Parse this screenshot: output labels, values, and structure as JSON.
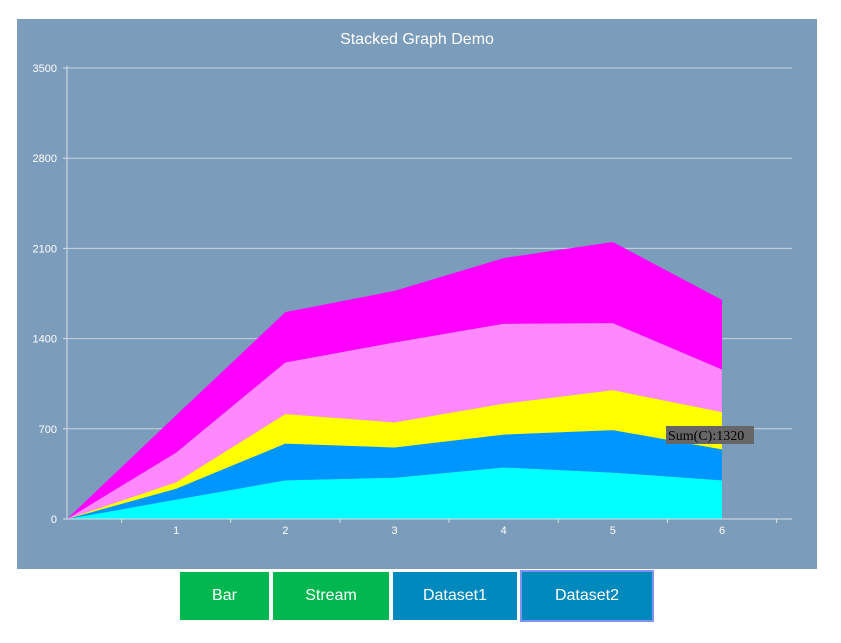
{
  "chart_data": {
    "type": "area",
    "stacked": true,
    "title": "Stacked Graph Demo",
    "xlabel": "",
    "ylabel": "",
    "x": [
      0,
      1,
      2,
      3,
      4,
      5,
      6
    ],
    "ylim": [
      0,
      3500
    ],
    "yticks": [
      0,
      700,
      1400,
      2100,
      2800,
      3500
    ],
    "xticks": [
      1,
      2,
      3,
      4,
      5,
      6
    ],
    "grid": true,
    "background": "#7b9cbb",
    "series": [
      {
        "color": "#00ffff",
        "values": [
          0,
          150,
          300,
          320,
          400,
          360,
          300
        ]
      },
      {
        "color": "#0096ff",
        "values": [
          0,
          85,
          285,
          235,
          255,
          330,
          240
        ]
      },
      {
        "color": "#ffff00",
        "values": [
          0,
          50,
          230,
          195,
          240,
          310,
          290
        ]
      },
      {
        "color": "#ff88ff",
        "values": [
          0,
          230,
          400,
          620,
          620,
          520,
          330
        ]
      },
      {
        "color": "#ff00ff",
        "values": [
          0,
          290,
          390,
          400,
          510,
          630,
          540
        ]
      }
    ],
    "tooltip": {
      "text": "Sum(C):1320",
      "anchor_x": 6
    }
  },
  "buttons": {
    "bar": "Bar",
    "stream": "Stream",
    "dataset1": "Dataset1",
    "dataset2": "Dataset2"
  }
}
